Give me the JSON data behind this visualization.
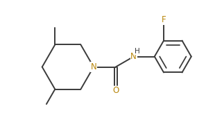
{
  "bg_color": "#ffffff",
  "bond_color": "#3a3a3a",
  "atom_colors": {
    "N": "#b8860b",
    "O": "#b8860b",
    "F": "#b8860b",
    "H": "#3a3a3a"
  },
  "font_size_atom": 8.5,
  "font_size_H": 7.5,
  "line_width": 1.4,
  "figsize": [
    2.84,
    1.86
  ],
  "dpi": 100,
  "xlim": [
    -3.8,
    4.2
  ],
  "ylim": [
    -2.0,
    2.2
  ]
}
